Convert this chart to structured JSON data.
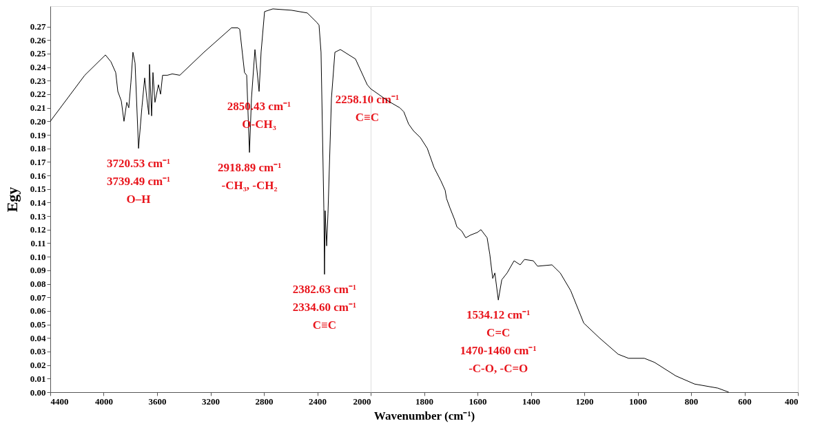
{
  "chart_data": [
    {
      "type": "line",
      "ylabel": "Egy",
      "xlim": [
        4400,
        2000
      ],
      "xticks": [
        4400,
        4000,
        3600,
        3200,
        2800,
        2400,
        2000
      ],
      "ylim": [
        0,
        0.285
      ],
      "yticks": [
        {
          "value": 0,
          "label": "0.00"
        },
        {
          "value": 0.01,
          "label": "0.01"
        },
        {
          "value": 0.02,
          "label": "0.02"
        },
        {
          "value": 0.03,
          "label": "0.03"
        },
        {
          "value": 0.04,
          "label": "0.04"
        },
        {
          "value": 0.05,
          "label": "0.05"
        },
        {
          "value": 0.06,
          "label": "0.06"
        },
        {
          "value": 0.07,
          "label": "0.07"
        },
        {
          "value": 0.08,
          "label": "0.08"
        },
        {
          "value": 0.09,
          "label": "0.09"
        },
        {
          "value": 0.1,
          "label": "0.10"
        },
        {
          "value": 0.11,
          "label": "0.11"
        },
        {
          "value": 0.12,
          "label": "0.12"
        },
        {
          "value": 0.13,
          "label": "0.13"
        },
        {
          "value": 0.14,
          "label": "0.14"
        },
        {
          "value": 0.15,
          "label": "0.15"
        },
        {
          "value": 0.16,
          "label": "0.16"
        },
        {
          "value": 0.17,
          "label": "0.17"
        },
        {
          "value": 0.18,
          "label": "0.18"
        },
        {
          "value": 0.19,
          "label": "0.19"
        },
        {
          "value": 0.2,
          "label": "0.20"
        },
        {
          "value": 0.21,
          "label": "0.21"
        },
        {
          "value": 0.22,
          "label": "0.22"
        },
        {
          "value": 0.23,
          "label": "0.23"
        },
        {
          "value": 0.24,
          "label": "0.24"
        },
        {
          "value": 0.25,
          "label": "0.25"
        },
        {
          "value": 0.26,
          "label": "0.26"
        },
        {
          "value": 0.27,
          "label": "0.27"
        }
      ],
      "grid": false,
      "legend": false,
      "marker": "none",
      "line_style": "solid",
      "series": [
        {
          "color": "#000000",
          "x": [
            4400,
            4142,
            3987,
            3946,
            3910,
            3894,
            3868,
            3848,
            3827,
            3812,
            3796,
            3781,
            3765,
            3739,
            3714,
            3693,
            3677,
            3662,
            3657,
            3641,
            3631,
            3616,
            3590,
            3574,
            3559,
            3523,
            3486,
            3430,
            3249,
            3043,
            2996,
            2981,
            2945,
            2929,
            2908,
            2893,
            2867,
            2836,
            2821,
            2795,
            2733,
            2594,
            2475,
            2403,
            2387,
            2372,
            2351,
            2346,
            2341,
            2330,
            2320,
            2294,
            2268,
            2227,
            2114,
            2026,
            2000
          ],
          "values": [
            0.2,
            0.234,
            0.249,
            0.244,
            0.236,
            0.222,
            0.215,
            0.2,
            0.214,
            0.21,
            0.229,
            0.251,
            0.243,
            0.18,
            0.21,
            0.232,
            0.217,
            0.205,
            0.242,
            0.204,
            0.236,
            0.214,
            0.227,
            0.22,
            0.234,
            0.234,
            0.235,
            0.234,
            0.251,
            0.269,
            0.269,
            0.268,
            0.236,
            0.234,
            0.177,
            0.217,
            0.253,
            0.222,
            0.251,
            0.281,
            0.283,
            0.282,
            0.28,
            0.273,
            0.271,
            0.251,
            0.136,
            0.087,
            0.134,
            0.108,
            0.132,
            0.217,
            0.251,
            0.253,
            0.246,
            0.227,
            0.224
          ]
        }
      ],
      "annotations": [
        {
          "text": "3720.53 cm⁻¹\n3739.49 cm⁻¹\nO–H",
          "x": 3739,
          "y": 0.18
        },
        {
          "text": "2918.89 cm⁻¹\n-CH₃, -CH₂",
          "x": 2908,
          "y": 0.177
        },
        {
          "text": "2850.43 cm⁻¹\nO-CH₃",
          "x": 2836,
          "y": 0.222
        },
        {
          "text": "2258.10 cm⁻¹\nC≡C",
          "x": 2026,
          "y": 0.227
        },
        {
          "text": "2382.63 cm⁻¹\n2334.60 cm⁻¹\nC≡C",
          "x": 2346,
          "y": 0.087
        }
      ]
    },
    {
      "type": "line",
      "xlabel": "Wavenumber (cm⁻¹)",
      "xlim": [
        2000,
        400
      ],
      "xticks": [
        1800,
        1600,
        1400,
        1200,
        1000,
        800,
        600,
        400
      ],
      "ylim": [
        0,
        0.285
      ],
      "tick_labels": "x",
      "grid": false,
      "legend": false,
      "marker": "none",
      "line_style": "solid",
      "series": [
        {
          "color": "#000000",
          "x": [
            2000,
            1935,
            1891,
            1876,
            1858,
            1840,
            1814,
            1788,
            1763,
            1737,
            1721,
            1716,
            1703,
            1685,
            1677,
            1659,
            1644,
            1626,
            1600,
            1587,
            1564,
            1554,
            1543,
            1535,
            1522,
            1509,
            1489,
            1463,
            1440,
            1424,
            1391,
            1375,
            1321,
            1290,
            1251,
            1202,
            1143,
            1073,
            1034,
            975,
            937,
            857,
            787,
            700,
            659
          ],
          "values": [
            0.224,
            0.215,
            0.21,
            0.207,
            0.198,
            0.193,
            0.188,
            0.18,
            0.166,
            0.156,
            0.149,
            0.143,
            0.136,
            0.127,
            0.122,
            0.119,
            0.114,
            0.116,
            0.118,
            0.12,
            0.114,
            0.102,
            0.084,
            0.088,
            0.068,
            0.083,
            0.088,
            0.097,
            0.094,
            0.098,
            0.097,
            0.093,
            0.094,
            0.088,
            0.075,
            0.051,
            0.04,
            0.028,
            0.025,
            0.025,
            0.022,
            0.012,
            0.006,
            0.003,
            0.0
          ]
        }
      ],
      "annotations": [
        {
          "text": "1534.12 cm⁻¹\nC=C\n1470-1460 cm⁻¹\n-C-O, -C=O",
          "x": 1522,
          "y": 0.068
        }
      ]
    }
  ]
}
